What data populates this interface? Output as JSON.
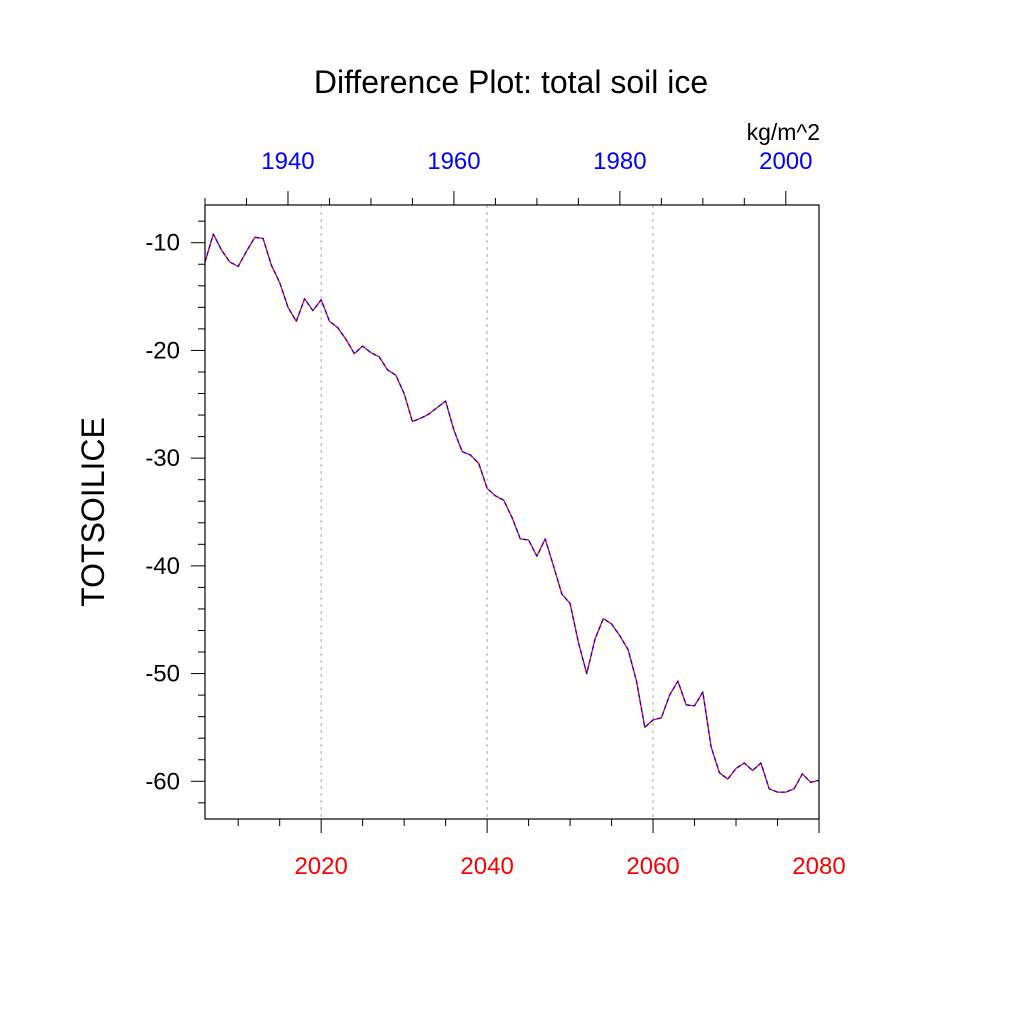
{
  "chart_data": {
    "type": "line",
    "title": "Difference Plot: total soil ice",
    "units": "kg/m^2",
    "ylabel": "TOTSOILICE",
    "xlabel": "",
    "x_bottom": {
      "range": [
        2006,
        2080
      ],
      "ticks": [
        2020,
        2040,
        2060,
        2080
      ],
      "tick_color": "#ff0000"
    },
    "x_top": {
      "range": [
        1930,
        2004
      ],
      "ticks": [
        1940,
        1960,
        1980,
        2000
      ],
      "tick_color": "#0000ff"
    },
    "ylim": [
      -63.5,
      -6.5
    ],
    "y_ticks": [
      -10,
      -20,
      -30,
      -40,
      -50,
      -60
    ],
    "y_tick_labels": [
      "-10",
      "-20",
      "-30",
      "-40",
      "-50",
      "-60"
    ],
    "grid": "vertical dashed at major bottom ticks",
    "series": [
      {
        "color": "#ff0000",
        "dash": "solid",
        "x": [
          2006,
          2007,
          2008,
          2009,
          2010,
          2011,
          2012,
          2013,
          2014,
          2015,
          2016,
          2017,
          2018,
          2019,
          2020,
          2021,
          2022,
          2023,
          2024,
          2025,
          2026,
          2027,
          2028,
          2029,
          2030,
          2031,
          2032,
          2033,
          2034,
          2035,
          2036,
          2037,
          2038,
          2039,
          2040,
          2041,
          2042,
          2043,
          2044,
          2045,
          2046,
          2047,
          2048,
          2049,
          2050,
          2051,
          2052,
          2053,
          2054,
          2055,
          2056,
          2057,
          2058,
          2059,
          2060,
          2061,
          2062,
          2063,
          2064,
          2065,
          2066,
          2067,
          2068,
          2069,
          2070,
          2071,
          2072,
          2073,
          2074,
          2075,
          2076,
          2077,
          2078,
          2079,
          2080
        ],
        "values": [
          -11.8,
          -9.2,
          -10.7,
          -11.8,
          -12.2,
          -10.8,
          -9.5,
          -9.6,
          -12.1,
          -13.7,
          -16.0,
          -17.3,
          -15.2,
          -16.3,
          -15.3,
          -17.3,
          -17.9,
          -19.0,
          -20.3,
          -19.6,
          -20.2,
          -20.6,
          -21.8,
          -22.3,
          -24.0,
          -26.6,
          -26.3,
          -25.9,
          -25.3,
          -24.7,
          -27.4,
          -29.4,
          -29.7,
          -30.5,
          -32.8,
          -33.5,
          -33.9,
          -35.5,
          -37.5,
          -37.6,
          -39.1,
          -37.5,
          -40.0,
          -42.6,
          -43.5,
          -47.1,
          -50.0,
          -46.8,
          -44.9,
          -45.4,
          -46.5,
          -47.8,
          -50.7,
          -55.0,
          -54.3,
          -54.1,
          -52.0,
          -50.7,
          -52.9,
          -53.0,
          -51.7,
          -56.8,
          -59.2,
          -59.8,
          -58.8,
          -58.3,
          -59.0,
          -58.3,
          -60.7,
          -61.0,
          -61.0,
          -60.7,
          -59.3,
          -60.1,
          -59.9
        ]
      },
      {
        "color": "#0000ff",
        "dash": "dashed",
        "x": [
          2006,
          2007,
          2008,
          2009,
          2010,
          2011,
          2012,
          2013,
          2014,
          2015,
          2016,
          2017,
          2018,
          2019,
          2020,
          2021,
          2022,
          2023,
          2024,
          2025,
          2026,
          2027,
          2028,
          2029,
          2030,
          2031,
          2032,
          2033,
          2034,
          2035,
          2036,
          2037,
          2038,
          2039,
          2040,
          2041,
          2042,
          2043,
          2044,
          2045,
          2046,
          2047,
          2048,
          2049,
          2050,
          2051,
          2052,
          2053,
          2054,
          2055,
          2056,
          2057,
          2058,
          2059,
          2060,
          2061,
          2062,
          2063,
          2064,
          2065,
          2066,
          2067,
          2068,
          2069,
          2070,
          2071,
          2072,
          2073,
          2074,
          2075,
          2076,
          2077,
          2078,
          2079,
          2080
        ],
        "values": [
          -11.8,
          -9.2,
          -10.7,
          -11.8,
          -12.2,
          -10.8,
          -9.5,
          -9.6,
          -12.1,
          -13.7,
          -16.0,
          -17.3,
          -15.2,
          -16.3,
          -15.3,
          -17.3,
          -17.9,
          -19.0,
          -20.3,
          -19.6,
          -20.2,
          -20.6,
          -21.8,
          -22.3,
          -24.0,
          -26.6,
          -26.3,
          -25.9,
          -25.3,
          -24.7,
          -27.4,
          -29.4,
          -29.7,
          -30.5,
          -32.8,
          -33.5,
          -33.9,
          -35.5,
          -37.5,
          -37.6,
          -39.1,
          -37.5,
          -40.0,
          -42.6,
          -43.5,
          -47.1,
          -50.0,
          -46.8,
          -44.9,
          -45.4,
          -46.5,
          -47.8,
          -50.7,
          -55.0,
          -54.3,
          -54.1,
          -52.0,
          -50.7,
          -52.9,
          -53.0,
          -51.7,
          -56.8,
          -59.2,
          -59.8,
          -58.8,
          -58.3,
          -59.0,
          -58.3,
          -60.7,
          -61.0,
          -61.0,
          -60.7,
          -59.3,
          -60.1,
          -59.9
        ]
      }
    ]
  }
}
